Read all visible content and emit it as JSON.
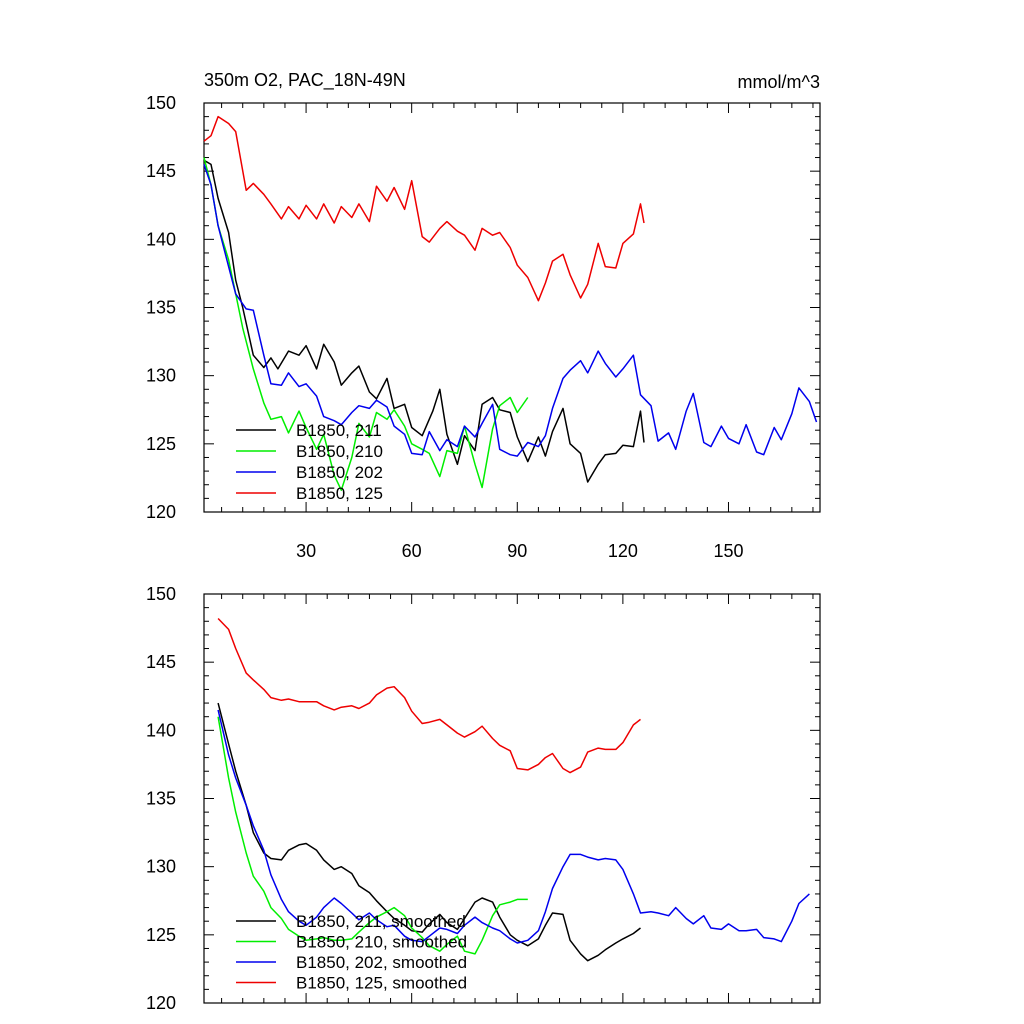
{
  "colors": {
    "s211": "#000000",
    "s210": "#00ee00",
    "s202": "#0000ee",
    "s125": "#ee0000"
  },
  "chart_data": [
    {
      "type": "line",
      "title": "350m O2, PAC_18N-49N",
      "units": "mmol/m^3",
      "xlim": [
        1,
        176
      ],
      "ylim": [
        120,
        150
      ],
      "xticks": [
        30,
        60,
        90,
        120,
        150
      ],
      "yticks": [
        120,
        125,
        130,
        135,
        140,
        145,
        150
      ],
      "xtick_labels": [
        "30",
        "60",
        "90",
        "120",
        "150"
      ],
      "ytick_labels": [
        "120",
        "125",
        "130",
        "135",
        "140",
        "145",
        "150"
      ],
      "legend": [
        "B1850, 211",
        "B1850, 210",
        "B1850, 202",
        "B1850, 125"
      ],
      "series": [
        {
          "name": "B1850, 211",
          "color_key": "s211",
          "x": [
            1,
            3,
            5,
            8,
            10,
            12,
            15,
            18,
            20,
            22,
            25,
            28,
            30,
            33,
            35,
            38,
            40,
            43,
            45,
            48,
            50,
            53,
            55,
            58,
            60,
            63,
            66,
            68,
            70,
            73,
            75,
            78,
            80,
            83,
            85,
            88,
            90,
            93,
            96,
            98,
            100,
            103,
            105,
            108,
            110,
            113,
            115,
            118,
            120,
            123,
            125,
            126
          ],
          "y": [
            145.8,
            145.5,
            143,
            140.5,
            137,
            135,
            131.5,
            130.6,
            131.3,
            130.5,
            131.8,
            131.5,
            132.2,
            130.5,
            132.3,
            131,
            129.3,
            130.2,
            130.7,
            128.8,
            128.3,
            129.8,
            127.6,
            127.9,
            126.2,
            125.6,
            127.4,
            129,
            125.7,
            123.5,
            125.6,
            124.5,
            127.9,
            128.4,
            127.5,
            127.3,
            125.5,
            123.7,
            125.5,
            124.1,
            125.9,
            127.6,
            125,
            124.3,
            122.2,
            123.5,
            124.2,
            124.3,
            124.9,
            124.8,
            127.4,
            125.1
          ]
        },
        {
          "name": "B1850, 210",
          "color_key": "s210",
          "x": [
            1,
            3,
            5,
            8,
            10,
            12,
            15,
            18,
            20,
            23,
            25,
            28,
            30,
            33,
            35,
            38,
            40,
            43,
            45,
            48,
            50,
            53,
            55,
            58,
            60,
            63,
            65,
            68,
            70,
            73,
            75,
            78,
            80,
            83,
            85,
            88,
            90,
            93
          ],
          "y": [
            146,
            144,
            141,
            138.5,
            136,
            133.5,
            130.5,
            128,
            126.8,
            127,
            125.8,
            127.4,
            126.2,
            124.6,
            125.7,
            122.7,
            121.6,
            124,
            126.5,
            125.5,
            127.3,
            126.8,
            127.5,
            126.3,
            125,
            124.6,
            124.3,
            122.6,
            124.5,
            124.3,
            126.3,
            123.5,
            121.8,
            126.1,
            127.8,
            128.4,
            127.3,
            128.4
          ]
        },
        {
          "name": "B1850, 202",
          "color_key": "s202",
          "x": [
            1,
            3,
            5,
            8,
            10,
            13,
            15,
            18,
            20,
            23,
            25,
            28,
            30,
            33,
            35,
            38,
            40,
            43,
            45,
            48,
            50,
            53,
            55,
            58,
            60,
            63,
            65,
            68,
            70,
            73,
            75,
            78,
            80,
            83,
            85,
            88,
            90,
            93,
            96,
            98,
            100,
            103,
            105,
            108,
            110,
            113,
            115,
            118,
            120,
            123,
            125,
            128,
            130,
            133,
            135,
            138,
            140,
            143,
            145,
            148,
            150,
            153,
            155,
            158,
            160,
            163,
            165,
            168,
            170,
            173,
            175
          ],
          "y": [
            145.5,
            144,
            141,
            138,
            136,
            134.9,
            134.8,
            131.5,
            129.4,
            129.3,
            130.2,
            129.2,
            129.4,
            128.5,
            127,
            126.7,
            126.4,
            127.3,
            127.8,
            127.6,
            128.2,
            127.7,
            126.3,
            125.7,
            124.3,
            124.2,
            125.9,
            124.5,
            125.3,
            124.8,
            126.3,
            125.5,
            126.5,
            127.9,
            124.6,
            124.2,
            124.1,
            125.1,
            124.8,
            125.6,
            127.6,
            129.8,
            130.4,
            131.1,
            130.2,
            131.8,
            130.9,
            129.9,
            130.5,
            131.5,
            128.6,
            127.8,
            125.2,
            125.8,
            124.6,
            127.4,
            128.7,
            125.1,
            124.8,
            126.3,
            125.4,
            125,
            126.4,
            124.4,
            124.2,
            126.2,
            125.3,
            127.2,
            129.1,
            128.1,
            126.6
          ]
        },
        {
          "name": "B1850, 125",
          "color_key": "s125",
          "x": [
            1,
            3,
            5,
            8,
            10,
            13,
            15,
            18,
            20,
            23,
            25,
            28,
            30,
            33,
            35,
            38,
            40,
            43,
            45,
            48,
            50,
            53,
            55,
            58,
            60,
            63,
            65,
            68,
            70,
            73,
            75,
            78,
            80,
            83,
            85,
            88,
            90,
            93,
            96,
            98,
            100,
            103,
            105,
            108,
            110,
            113,
            115,
            118,
            120,
            123,
            125,
            126
          ],
          "y": [
            147.2,
            147.6,
            149,
            148.5,
            147.9,
            143.6,
            144.1,
            143.3,
            142.6,
            141.5,
            142.4,
            141.5,
            142.5,
            141.5,
            142.6,
            141.2,
            142.4,
            141.6,
            142.6,
            141.3,
            143.9,
            142.8,
            143.8,
            142.2,
            144.3,
            140.2,
            139.8,
            140.8,
            141.3,
            140.6,
            140.3,
            139.2,
            140.8,
            140.3,
            140.5,
            139.4,
            138.1,
            137.2,
            135.5,
            136.8,
            138.4,
            138.9,
            137.4,
            135.7,
            136.7,
            139.7,
            138,
            137.9,
            139.7,
            140.4,
            142.6,
            141.2
          ]
        }
      ]
    },
    {
      "type": "line",
      "title": "",
      "xlim": [
        1,
        176
      ],
      "ylim": [
        120,
        150
      ],
      "xticks": [
        30,
        60,
        90,
        120,
        150
      ],
      "yticks": [
        120,
        125,
        130,
        135,
        140,
        145,
        150
      ],
      "xtick_labels": [],
      "ytick_labels": [
        "120",
        "125",
        "130",
        "135",
        "140",
        "145",
        "150"
      ],
      "legend": [
        "B1850, 211, smoothed",
        "B1850, 210, smoothed",
        "B1850, 202, smoothed",
        "B1850, 125, smoothed"
      ],
      "series": [
        {
          "name": "B1850, 211, smoothed",
          "color_key": "s211",
          "x": [
            5,
            8,
            10,
            13,
            15,
            18,
            20,
            23,
            25,
            28,
            30,
            33,
            35,
            38,
            40,
            43,
            45,
            48,
            50,
            53,
            55,
            58,
            60,
            63,
            65,
            68,
            70,
            73,
            75,
            78,
            80,
            83,
            85,
            88,
            90,
            93,
            96,
            98,
            100,
            103,
            105,
            108,
            110,
            113,
            115,
            118,
            120,
            123,
            125
          ],
          "y": [
            142,
            139,
            137,
            134.5,
            132.5,
            131,
            130.6,
            130.5,
            131.2,
            131.6,
            131.7,
            131.2,
            130.5,
            129.8,
            130,
            129.5,
            128.6,
            128.1,
            127.5,
            126.7,
            126.2,
            125.7,
            125.3,
            125.2,
            125.8,
            126.5,
            125.9,
            125.4,
            126.2,
            127.4,
            127.7,
            127.4,
            126.3,
            125,
            124.6,
            124.2,
            124.7,
            125.7,
            126.6,
            126.5,
            124.6,
            123.6,
            123.1,
            123.5,
            123.9,
            124.4,
            124.7,
            125.1,
            125.5
          ]
        },
        {
          "name": "B1850, 210, smoothed",
          "color_key": "s210",
          "x": [
            5,
            8,
            10,
            13,
            15,
            18,
            20,
            23,
            25,
            28,
            30,
            33,
            35,
            38,
            40,
            43,
            45,
            48,
            50,
            53,
            55,
            58,
            60,
            63,
            65,
            68,
            70,
            73,
            75,
            78,
            80,
            83,
            85,
            88,
            90,
            93
          ],
          "y": [
            141,
            136.5,
            134,
            131,
            129.3,
            128.2,
            127,
            126.2,
            125.4,
            124.9,
            124.6,
            124.7,
            124.8,
            124.6,
            124.6,
            124.7,
            125.2,
            125.9,
            126.3,
            126.7,
            127,
            126.4,
            125.5,
            124.8,
            124.2,
            123.8,
            124.3,
            124.9,
            123.8,
            123.6,
            124.6,
            126.4,
            127.2,
            127.4,
            127.6,
            127.6
          ]
        },
        {
          "name": "B1850, 202, smoothed",
          "color_key": "s202",
          "x": [
            5,
            8,
            10,
            13,
            15,
            18,
            20,
            23,
            25,
            28,
            30,
            33,
            35,
            38,
            40,
            43,
            45,
            48,
            50,
            53,
            55,
            58,
            60,
            63,
            65,
            68,
            70,
            73,
            75,
            78,
            80,
            83,
            85,
            88,
            90,
            93,
            96,
            98,
            100,
            103,
            105,
            108,
            110,
            113,
            115,
            118,
            120,
            123,
            125,
            128,
            130,
            133,
            135,
            138,
            140,
            143,
            145,
            148,
            150,
            153,
            155,
            158,
            160,
            163,
            165,
            168,
            170,
            173
          ],
          "y": [
            141.5,
            138.2,
            136.5,
            134.5,
            133,
            131.2,
            129.4,
            127.6,
            126.7,
            126,
            125.7,
            126.3,
            127,
            127.7,
            127.3,
            126.6,
            126.1,
            126.6,
            126.1,
            125.6,
            125.7,
            124.9,
            124.6,
            124.5,
            124.9,
            125.5,
            125.4,
            125.1,
            125.7,
            126.3,
            125.9,
            125.5,
            125.3,
            124.7,
            124.4,
            124.6,
            125.3,
            126.7,
            128.4,
            130,
            130.9,
            130.9,
            130.7,
            130.5,
            130.6,
            130.5,
            129.8,
            128,
            126.6,
            126.7,
            126.6,
            126.4,
            127,
            126.2,
            125.8,
            126.4,
            125.5,
            125.4,
            125.8,
            125.3,
            125.3,
            125.4,
            124.8,
            124.7,
            124.5,
            126,
            127.3,
            128
          ]
        },
        {
          "name": "B1850, 125, smoothed",
          "color_key": "s125",
          "x": [
            5,
            8,
            10,
            13,
            15,
            18,
            20,
            23,
            25,
            28,
            30,
            33,
            35,
            38,
            40,
            43,
            45,
            48,
            50,
            53,
            55,
            58,
            60,
            63,
            65,
            68,
            70,
            73,
            75,
            78,
            80,
            83,
            85,
            88,
            90,
            93,
            96,
            98,
            100,
            103,
            105,
            108,
            110,
            113,
            115,
            118,
            120,
            123,
            125
          ],
          "y": [
            148.2,
            147.4,
            146,
            144.2,
            143.7,
            143,
            142.4,
            142.2,
            142.3,
            142.1,
            142.1,
            142.1,
            141.8,
            141.5,
            141.7,
            141.8,
            141.6,
            142,
            142.6,
            143.1,
            143.2,
            142.4,
            141.4,
            140.5,
            140.6,
            140.8,
            140.4,
            139.8,
            139.5,
            139.9,
            140.3,
            139.4,
            138.9,
            138.5,
            137.2,
            137.1,
            137.5,
            138,
            138.3,
            137.2,
            136.9,
            137.3,
            138.4,
            138.7,
            138.6,
            138.6,
            139.1,
            140.4,
            140.8
          ]
        }
      ]
    }
  ]
}
